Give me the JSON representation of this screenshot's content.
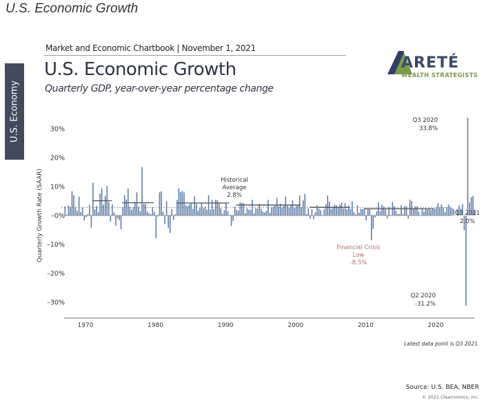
{
  "page": {
    "heading": "U.S. Economic Growth",
    "chartbook_line": "Market and Economic Chartbook | November 1, 2021",
    "side_tab": "U.S. Economy",
    "logo": {
      "word": "ARETÉ",
      "tagline": "WEALTH STRATEGISTS"
    },
    "footnote": "Latest data point is Q3 2021",
    "source": "Source: U.S. BEA, NBER",
    "copyright": "© 2021 Clearnomics, Inc."
  },
  "colors": {
    "bar": "#5b7aa8",
    "avg_line": "#555a60",
    "crisis_text": "#b86b6b",
    "text": "#333333",
    "side_tab": "#424b5c",
    "logo_green": "#7c9a4a",
    "logo_navy": "#2f3f63"
  },
  "chart_data": {
    "type": "bar",
    "title": "U.S. Economic Growth",
    "subtitle": "Quarterly GDP, year-over-year percentage change",
    "ylabel": "Quarterly Growth Rate (SAAR)",
    "xlabel": "",
    "ylim": [
      -35,
      36
    ],
    "xlim": [
      1966.75,
      2025.5
    ],
    "yticks": [
      30,
      20,
      10,
      0,
      -10,
      -20,
      -30
    ],
    "ytick_labels": [
      "30%",
      "20%",
      "10%",
      "–0%",
      "–10%",
      "–20%",
      "–30%"
    ],
    "xticks": [
      1970,
      1980,
      1990,
      2000,
      2010,
      2020
    ],
    "xtick_labels": [
      "1970",
      "1980",
      "1990",
      "2000",
      "2010",
      "2020"
    ],
    "grid": false,
    "start_year": 1967,
    "frequency": "quarterly",
    "historical_average": 2.8,
    "expansion_averages": [
      {
        "start": 1971.0,
        "end": 1973.75,
        "value": 5.1
      },
      {
        "start": 1975.25,
        "end": 1979.75,
        "value": 4.4
      },
      {
        "start": 1983.0,
        "end": 1990.5,
        "value": 4.3
      },
      {
        "start": 1991.5,
        "end": 2000.75,
        "value": 3.6
      },
      {
        "start": 2002.0,
        "end": 2007.75,
        "value": 2.8
      },
      {
        "start": 2009.75,
        "end": 2019.75,
        "value": 2.3
      }
    ],
    "series": [
      {
        "name": "Quarterly GDP growth",
        "values": [
          3.2,
          0.3,
          3.5,
          2.8,
          8.4,
          7.0,
          3.0,
          1.6,
          6.5,
          1.2,
          2.7,
          -1.8,
          -0.6,
          0.5,
          3.6,
          -4.2,
          11.3,
          2.1,
          3.3,
          1.1,
          7.6,
          9.4,
          3.7,
          6.8,
          10.2,
          4.6,
          -2.1,
          3.8,
          1.0,
          -3.5,
          -1.0,
          -1.6,
          -4.8,
          2.9,
          7.0,
          5.5,
          9.3,
          3.0,
          2.0,
          2.9,
          4.7,
          8.0,
          3.0,
          1.5,
          16.7,
          4.0,
          4.0,
          1.3,
          0.7,
          0.4,
          2.9,
          1.2,
          -7.9,
          -0.4,
          8.0,
          8.4,
          1.3,
          -3.0,
          4.9,
          -4.3,
          -6.1,
          2.2,
          -1.5,
          0.4,
          5.3,
          9.4,
          8.1,
          8.5,
          7.9,
          3.5,
          3.2,
          3.8,
          4.1,
          2.3,
          6.6,
          3.9,
          1.6,
          2.6,
          4.2,
          2.5,
          3.1,
          2.0,
          7.0,
          2.0,
          5.4,
          2.2,
          5.4,
          5.3,
          4.1,
          2.5,
          0.6,
          1.8,
          4.4,
          1.5,
          0.2,
          -3.6,
          -1.9,
          3.1,
          1.9,
          1.7,
          4.6,
          4.3,
          4.3,
          0.7,
          2.5,
          2.0,
          1.9,
          5.4,
          0.7,
          2.6,
          2.3,
          4.1,
          2.3,
          1.3,
          1.0,
          1.6,
          5.4,
          0.9,
          2.8,
          3.0,
          3.4,
          6.1,
          3.1,
          4.0,
          2.7,
          3.4,
          6.5,
          3.3,
          2.7,
          3.7,
          5.3,
          2.6,
          3.3,
          3.6,
          6.9,
          2.9,
          5.2,
          7.5,
          0.5,
          2.5,
          -1.1,
          2.1,
          -1.3,
          1.1,
          3.5,
          2.4,
          1.8,
          0.2,
          2.1,
          3.8,
          6.9,
          4.8,
          2.3,
          3.0,
          3.7,
          3.5,
          2.9,
          3.8,
          4.5,
          2.4,
          4.3,
          2.1,
          3.4,
          2.3,
          4.9,
          1.2,
          0.4,
          3.5,
          0.9,
          2.3,
          2.2,
          2.5,
          -1.7,
          2.3,
          2.1,
          -8.5,
          -4.6,
          -0.7,
          1.5,
          4.5,
          1.5,
          3.7,
          3.0,
          2.0,
          -1.0,
          2.9,
          -0.1,
          4.7,
          3.2,
          1.7,
          0.5,
          0.5,
          3.6,
          0.5,
          3.2,
          3.2,
          -1.1,
          5.5,
          5.0,
          2.3,
          3.2,
          3.2,
          1.3,
          0.1,
          2.3,
          1.3,
          2.2,
          2.0,
          2.3,
          1.9,
          2.2,
          2.3,
          2.8,
          4.3,
          2.8,
          3.8,
          2.7,
          1.2,
          2.9,
          3.8,
          3.0,
          2.6,
          2.2,
          0.0,
          2.3,
          3.4,
          2.4,
          3.9,
          -5.1,
          -31.2,
          33.8,
          4.5,
          6.3,
          6.7,
          2.0
        ]
      }
    ],
    "annotations": [
      {
        "text_lines": [
          "Q3 2020",
          "33.8%"
        ],
        "x": 2020.5,
        "y": 33.8
      },
      {
        "text_lines": [
          "Q2 2020",
          "-31.2%"
        ],
        "x": 2020.25,
        "y": -31.2
      },
      {
        "text_lines": [
          "Q3 2021",
          "2.0%"
        ],
        "x": 2021.5,
        "y": 2.0
      },
      {
        "text_lines": [
          "Historical",
          "Average",
          "2.8%"
        ],
        "x": 1991,
        "y": 2.8
      },
      {
        "text_lines": [
          "Financial Crisis",
          "Low",
          "-8.5%"
        ],
        "x": 2008.75,
        "y": -8.5
      }
    ]
  }
}
